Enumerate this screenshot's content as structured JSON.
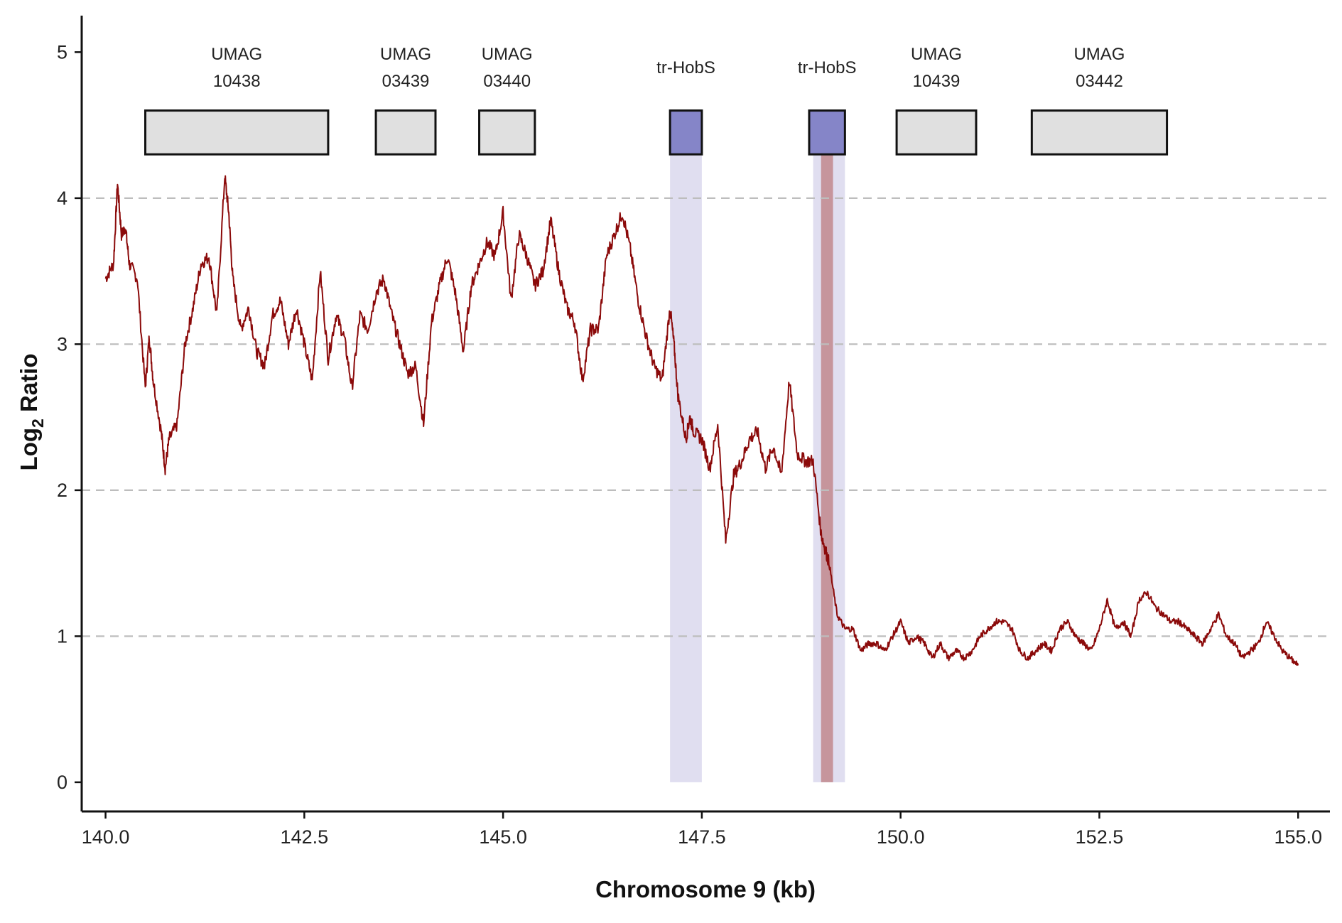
{
  "chart_data": {
    "type": "line",
    "xlabel": "Chromosome 9 (kb)",
    "ylabel": "Log",
    "ylabel_subscript": "2",
    "ylabel_suffix": " Ratio",
    "xlim": [
      139.7,
      155.4
    ],
    "ylim": [
      -0.2,
      5.25
    ],
    "x_ticks": [
      140.0,
      142.5,
      145.0,
      147.5,
      150.0,
      152.5,
      155.0
    ],
    "x_tick_labels": [
      "140.0",
      "142.5",
      "145.0",
      "147.5",
      "150.0",
      "152.5",
      "155.0"
    ],
    "y_ticks": [
      0,
      1,
      2,
      3,
      4,
      5
    ],
    "y_tick_labels": [
      "0",
      "1",
      "2",
      "3",
      "4",
      "5"
    ],
    "grid": {
      "horizontal_dashed_at": [
        1,
        2,
        3,
        4
      ]
    },
    "genes": [
      {
        "line1": "UMAG",
        "line2": "10438",
        "start": 140.5,
        "end": 142.8,
        "kind": "gene"
      },
      {
        "line1": "UMAG",
        "line2": "03439",
        "start": 143.4,
        "end": 144.15,
        "kind": "gene"
      },
      {
        "line1": "UMAG",
        "line2": "03440",
        "start": 144.7,
        "end": 145.4,
        "kind": "gene"
      },
      {
        "line1": "tr-HobS",
        "line2": "",
        "start": 147.1,
        "end": 147.5,
        "kind": "hobs"
      },
      {
        "line1": "tr-HobS",
        "line2": "",
        "start": 148.85,
        "end": 149.3,
        "kind": "hobs"
      },
      {
        "line1": "UMAG",
        "line2": "10439",
        "start": 149.95,
        "end": 150.95,
        "kind": "gene"
      },
      {
        "line1": "UMAG",
        "line2": "03442",
        "start": 151.65,
        "end": 153.35,
        "kind": "gene"
      }
    ],
    "shaded_regions": [
      {
        "start": 147.1,
        "end": 147.5,
        "color": "#e0def0"
      },
      {
        "start": 148.9,
        "end": 149.3,
        "color": "#e0def0"
      },
      {
        "start": 149.0,
        "end": 149.15,
        "color": "#c6959c"
      }
    ],
    "series": [
      {
        "color": "#8b0a0a",
        "x": [
          140.0,
          140.1,
          140.15,
          140.2,
          140.25,
          140.3,
          140.4,
          140.5,
          140.55,
          140.6,
          140.7,
          140.75,
          140.8,
          140.9,
          141.0,
          141.1,
          141.2,
          141.3,
          141.4,
          141.5,
          141.55,
          141.6,
          141.7,
          141.8,
          141.9,
          142.0,
          142.1,
          142.2,
          142.3,
          142.4,
          142.5,
          142.6,
          142.7,
          142.8,
          142.9,
          143.0,
          143.1,
          143.2,
          143.3,
          143.4,
          143.5,
          143.6,
          143.7,
          143.8,
          143.9,
          144.0,
          144.1,
          144.2,
          144.3,
          144.4,
          144.5,
          144.6,
          144.7,
          144.8,
          144.9,
          145.0,
          145.1,
          145.2,
          145.3,
          145.4,
          145.5,
          145.6,
          145.7,
          145.8,
          145.9,
          146.0,
          146.1,
          146.2,
          146.3,
          146.4,
          146.5,
          146.6,
          146.7,
          146.8,
          146.9,
          147.0,
          147.1,
          147.15,
          147.2,
          147.3,
          147.35,
          147.4,
          147.5,
          147.6,
          147.7,
          147.8,
          147.9,
          148.0,
          148.1,
          148.2,
          148.3,
          148.4,
          148.5,
          148.6,
          148.7,
          148.8,
          148.9,
          149.0,
          149.05,
          149.1,
          149.2,
          149.3,
          149.4,
          149.5,
          149.6,
          149.7,
          149.8,
          149.9,
          150.0,
          150.1,
          150.2,
          150.3,
          150.4,
          150.5,
          150.6,
          150.7,
          150.8,
          150.9,
          151.0,
          151.1,
          151.2,
          151.3,
          151.4,
          151.5,
          151.6,
          151.7,
          151.8,
          151.9,
          152.0,
          152.1,
          152.2,
          152.3,
          152.4,
          152.5,
          152.6,
          152.7,
          152.8,
          152.9,
          153.0,
          153.1,
          153.2,
          153.3,
          153.4,
          153.5,
          153.6,
          153.7,
          153.8,
          153.9,
          154.0,
          154.1,
          154.2,
          154.3,
          154.4,
          154.5,
          154.6,
          154.7,
          154.8,
          154.9,
          155.0
        ],
        "y": [
          3.45,
          3.55,
          4.1,
          3.75,
          3.8,
          3.55,
          3.45,
          2.7,
          3.05,
          2.75,
          2.4,
          2.15,
          2.35,
          2.45,
          3.0,
          3.25,
          3.55,
          3.6,
          3.2,
          4.15,
          3.9,
          3.45,
          3.1,
          3.25,
          2.95,
          2.85,
          3.2,
          3.3,
          3.0,
          3.25,
          3.0,
          2.75,
          3.5,
          2.9,
          3.2,
          3.05,
          2.7,
          3.2,
          3.1,
          3.35,
          3.45,
          3.2,
          3.0,
          2.8,
          2.85,
          2.45,
          3.15,
          3.4,
          3.6,
          3.35,
          2.95,
          3.4,
          3.55,
          3.7,
          3.6,
          3.9,
          3.3,
          3.75,
          3.6,
          3.4,
          3.5,
          3.85,
          3.5,
          3.25,
          3.15,
          2.75,
          3.1,
          3.1,
          3.6,
          3.75,
          3.9,
          3.65,
          3.3,
          3.05,
          2.85,
          2.75,
          3.25,
          3.0,
          2.65,
          2.35,
          2.5,
          2.4,
          2.35,
          2.15,
          2.45,
          1.65,
          2.1,
          2.2,
          2.35,
          2.4,
          2.15,
          2.3,
          2.1,
          2.75,
          2.25,
          2.2,
          2.2,
          1.7,
          1.6,
          1.5,
          1.15,
          1.05,
          1.05,
          0.9,
          0.95,
          0.95,
          0.9,
          1.0,
          1.1,
          0.95,
          1.0,
          0.95,
          0.85,
          0.95,
          0.85,
          0.9,
          0.85,
          0.9,
          1.0,
          1.05,
          1.1,
          1.1,
          1.05,
          0.9,
          0.85,
          0.9,
          0.95,
          0.9,
          1.05,
          1.1,
          1.0,
          0.95,
          0.9,
          1.05,
          1.25,
          1.05,
          1.1,
          1.0,
          1.25,
          1.3,
          1.2,
          1.15,
          1.1,
          1.1,
          1.05,
          1.0,
          0.95,
          1.05,
          1.15,
          1.0,
          0.95,
          0.85,
          0.9,
          0.95,
          1.1,
          1.0,
          0.9,
          0.85,
          0.8
        ]
      }
    ]
  }
}
